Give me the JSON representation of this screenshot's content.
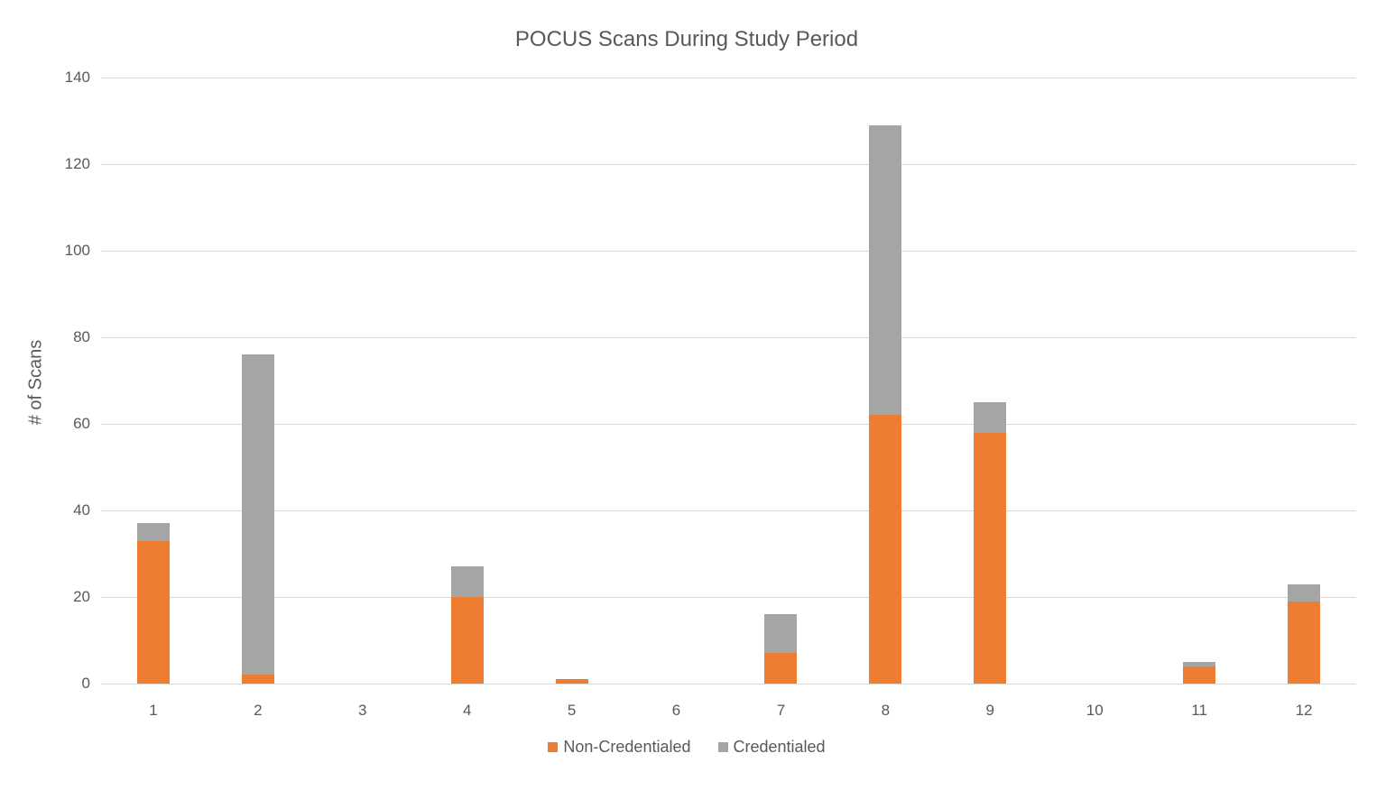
{
  "chart_data": {
    "type": "bar",
    "stacked": true,
    "title": "POCUS Scans During Study Period",
    "xlabel": "",
    "ylabel": "# of Scans",
    "ylim": [
      0,
      140
    ],
    "yticks": [
      0,
      20,
      40,
      60,
      80,
      100,
      120,
      140
    ],
    "grid": true,
    "legend_position": "bottom",
    "categories": [
      "1",
      "2",
      "3",
      "4",
      "5",
      "6",
      "7",
      "8",
      "9",
      "10",
      "11",
      "12"
    ],
    "series": [
      {
        "name": "Non-Credentialed",
        "color": "#ed7d31",
        "values": [
          33,
          2,
          0,
          20,
          1,
          0,
          7,
          62,
          58,
          0,
          4,
          19
        ]
      },
      {
        "name": "Credentialed",
        "color": "#a5a5a5",
        "values": [
          4,
          74,
          0,
          7,
          0,
          0,
          9,
          67,
          7,
          0,
          1,
          4
        ]
      }
    ],
    "totals": [
      37,
      76,
      0,
      27,
      1,
      0,
      16,
      129,
      65,
      0,
      5,
      23
    ]
  }
}
